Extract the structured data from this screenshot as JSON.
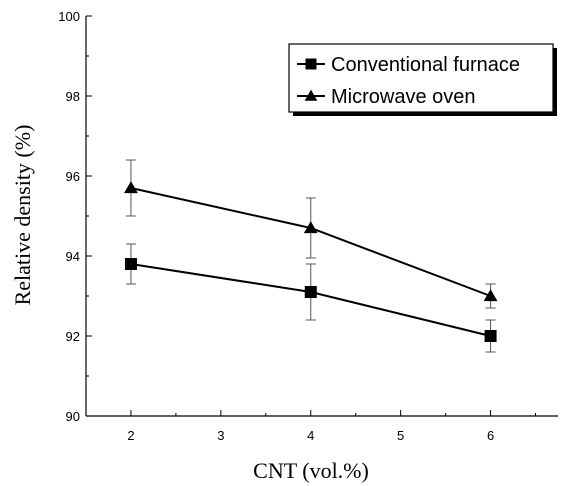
{
  "chart_data": {
    "type": "line",
    "xlabel": "CNT (vol.%)",
    "ylabel": "Relative density (%)",
    "xlim": [
      1.5,
      6.75
    ],
    "ylim": [
      90,
      100
    ],
    "xticks": [
      "2",
      "3",
      "4",
      "5",
      "6"
    ],
    "yticks": [
      "90",
      "92",
      "94",
      "96",
      "98",
      "100"
    ],
    "grid": false,
    "legend_position": "top-right",
    "series": [
      {
        "name": "Conventional furnace",
        "marker": "square",
        "color": "#000000",
        "x": [
          2,
          4,
          6
        ],
        "y": [
          93.8,
          93.1,
          92.0
        ],
        "error": [
          0.5,
          0.7,
          0.4
        ]
      },
      {
        "name": "Microwave oven",
        "marker": "triangle",
        "color": "#000000",
        "x": [
          2,
          4,
          6
        ],
        "y": [
          95.7,
          94.7,
          93.0
        ],
        "error": [
          0.7,
          0.75,
          0.3
        ]
      }
    ]
  }
}
